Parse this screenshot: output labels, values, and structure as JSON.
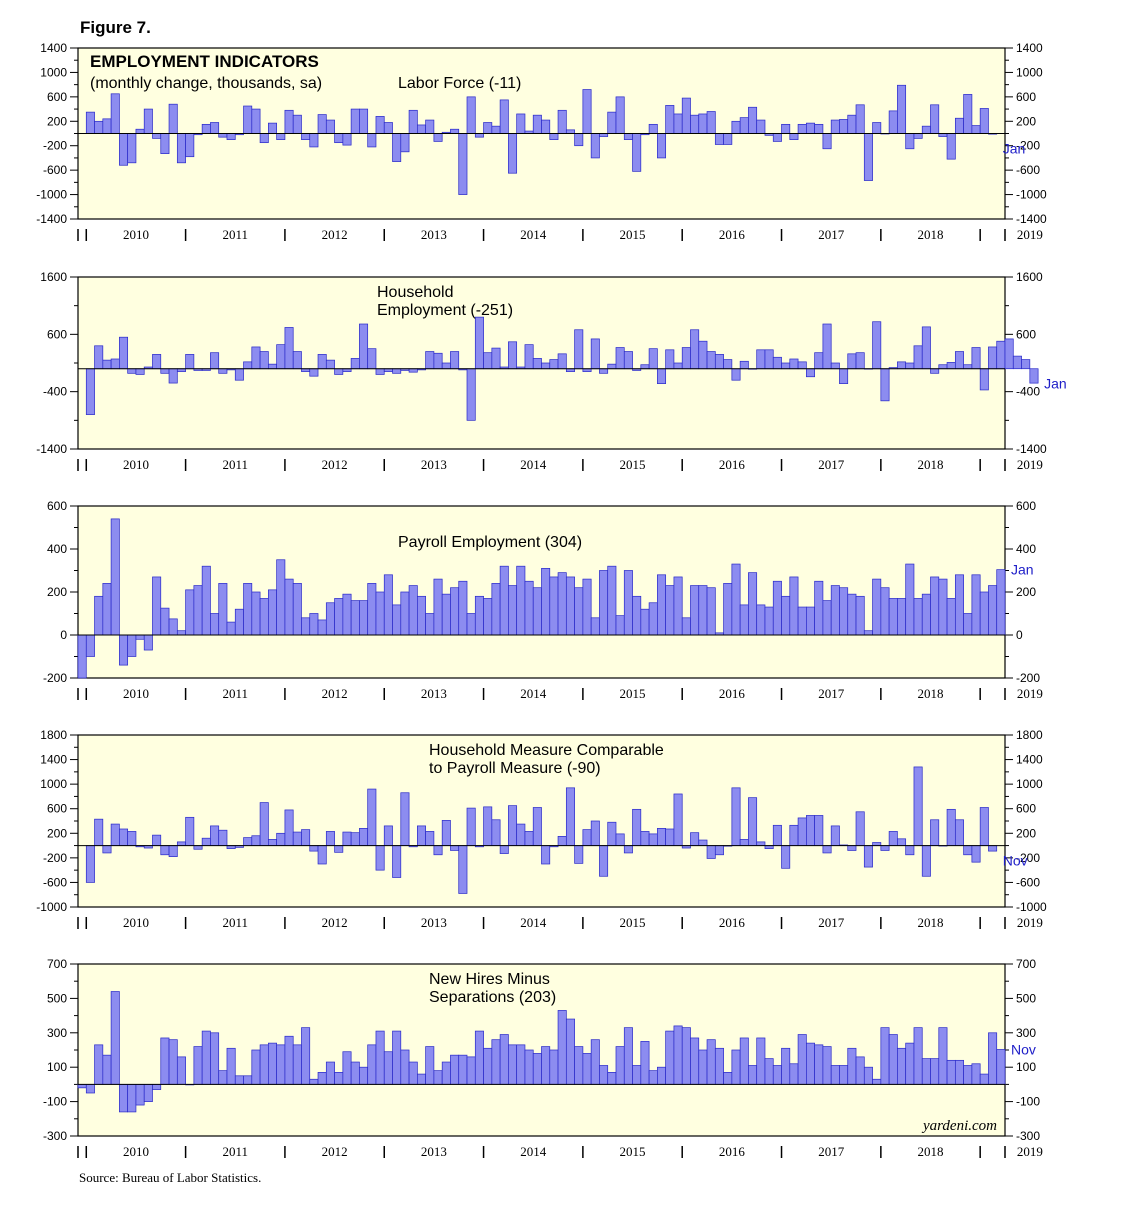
{
  "figure_title": "Figure 7.",
  "source": "Source: Bureau of Labor Statistics.",
  "credit": "yardeni.com",
  "colors": {
    "bar_fill": "#8c8cf0",
    "bar_stroke": "#2828c8",
    "panel_bg": "#ffffe0",
    "end_label": "#1e1ec8"
  },
  "chart_data": [
    {
      "type": "bar",
      "title": "EMPLOYMENT INDICATORS",
      "subtitle": "(monthly change, thousands, sa)",
      "series_label": "Labor Force (-11)",
      "end_label": "Jan",
      "ylim": [
        -1400,
        1400
      ],
      "yticks": [
        "1400",
        "1000",
        "600",
        "200",
        "-200",
        "-600",
        "-1000",
        "-1400"
      ],
      "years": [
        "2010",
        "2011",
        "2012",
        "2013",
        "2014",
        "2015",
        "2016",
        "2017",
        "2018",
        "2019"
      ],
      "x_start": "2010-01",
      "values": [
        350,
        200,
        240,
        650,
        -520,
        -480,
        70,
        400,
        -80,
        -330,
        480,
        -480,
        -380,
        -20,
        150,
        180,
        -60,
        -100,
        -20,
        450,
        400,
        -150,
        170,
        -100,
        380,
        300,
        -100,
        -220,
        310,
        220,
        -150,
        -190,
        400,
        400,
        -220,
        280,
        180,
        -460,
        -300,
        380,
        140,
        220,
        -130,
        20,
        70,
        -1000,
        600,
        -60,
        180,
        120,
        550,
        -650,
        320,
        40,
        300,
        220,
        -100,
        380,
        60,
        -200,
        720,
        -400,
        -50,
        350,
        600,
        -100,
        -620,
        -20,
        150,
        -400,
        460,
        320,
        580,
        300,
        320,
        360,
        -180,
        -180,
        200,
        260,
        430,
        220,
        -30,
        -130,
        150,
        -100,
        150,
        170,
        150,
        -250,
        220,
        230,
        300,
        470,
        -770,
        180,
        0,
        370,
        790,
        -250,
        -80,
        120,
        470,
        -50,
        -420,
        250,
        640,
        130,
        410,
        -11
      ]
    },
    {
      "type": "bar",
      "series_label_lines": [
        "Household",
        "Employment (-251)"
      ],
      "end_label": "Jan",
      "ylim": [
        -1400,
        1600
      ],
      "yticks": [
        "1600",
        "600",
        "-400",
        "-1400"
      ],
      "years": [
        "2010",
        "2011",
        "2012",
        "2013",
        "2014",
        "2015",
        "2016",
        "2017",
        "2018",
        "2019"
      ],
      "x_start": "2010-01",
      "values": [
        -800,
        400,
        150,
        170,
        550,
        -80,
        -100,
        30,
        250,
        -80,
        -250,
        -50,
        250,
        -30,
        -30,
        280,
        -80,
        -20,
        -200,
        120,
        380,
        300,
        80,
        420,
        720,
        300,
        -50,
        -130,
        250,
        150,
        -100,
        -50,
        180,
        780,
        350,
        -100,
        -50,
        -80,
        -30,
        -60,
        -20,
        300,
        270,
        100,
        300,
        -20,
        -900,
        900,
        280,
        360,
        30,
        470,
        30,
        420,
        180,
        100,
        160,
        260,
        -50,
        680,
        -50,
        520,
        -80,
        80,
        370,
        300,
        -30,
        70,
        350,
        -260,
        330,
        100,
        370,
        680,
        480,
        300,
        250,
        160,
        -200,
        130,
        0,
        330,
        330,
        200,
        100,
        170,
        120,
        -140,
        280,
        780,
        100,
        -260,
        260,
        280,
        1,
        820,
        -560,
        20,
        120,
        100,
        400,
        730,
        -80,
        70,
        110,
        300,
        70,
        370,
        -370,
        380,
        480,
        520,
        220,
        160,
        -251
      ]
    },
    {
      "type": "bar",
      "series_label": "Payroll Employment (304)",
      "end_label": "Jan",
      "ylim": [
        -200,
        600
      ],
      "yticks": [
        "600",
        "400",
        "200",
        "0",
        "-200"
      ],
      "years": [
        "2010",
        "2011",
        "2012",
        "2013",
        "2014",
        "2015",
        "2016",
        "2017",
        "2018",
        "2019"
      ],
      "x_start": "2009-12",
      "values": [
        -200,
        -100,
        180,
        240,
        540,
        -140,
        -100,
        -20,
        -70,
        270,
        125,
        75,
        20,
        210,
        230,
        320,
        100,
        240,
        60,
        120,
        240,
        200,
        170,
        210,
        350,
        260,
        240,
        80,
        100,
        70,
        150,
        170,
        190,
        160,
        160,
        240,
        200,
        280,
        140,
        200,
        230,
        180,
        100,
        260,
        190,
        220,
        250,
        100,
        180,
        170,
        240,
        320,
        230,
        320,
        250,
        220,
        310,
        270,
        290,
        270,
        220,
        260,
        80,
        300,
        320,
        90,
        300,
        180,
        120,
        150,
        280,
        230,
        270,
        80,
        230,
        230,
        220,
        10,
        240,
        330,
        140,
        290,
        140,
        130,
        250,
        180,
        270,
        130,
        130,
        250,
        160,
        230,
        220,
        190,
        180,
        20,
        260,
        220,
        170,
        170,
        330,
        170,
        190,
        270,
        260,
        170,
        280,
        100,
        280,
        200,
        230,
        304
      ]
    },
    {
      "type": "bar",
      "series_label_lines": [
        "Household Measure Comparable",
        "to Payroll Measure (-90)"
      ],
      "end_label": "Nov",
      "ylim": [
        -1000,
        1800
      ],
      "yticks": [
        "1800",
        "1400",
        "1000",
        "600",
        "200",
        "-200",
        "-600",
        "-1000"
      ],
      "years": [
        "2010",
        "2011",
        "2012",
        "2013",
        "2014",
        "2015",
        "2016",
        "2017",
        "2018",
        "2019"
      ],
      "x_start": "2010-01",
      "values": [
        -600,
        430,
        -120,
        350,
        270,
        230,
        -20,
        -40,
        170,
        -150,
        -180,
        60,
        460,
        -60,
        120,
        320,
        250,
        -50,
        -30,
        130,
        160,
        700,
        100,
        200,
        580,
        220,
        260,
        -90,
        -300,
        230,
        -110,
        220,
        210,
        280,
        920,
        -400,
        320,
        -520,
        860,
        -20,
        320,
        230,
        -150,
        410,
        -80,
        -780,
        610,
        -20,
        630,
        420,
        -130,
        650,
        350,
        230,
        620,
        -300,
        -20,
        150,
        940,
        -290,
        260,
        400,
        -500,
        380,
        190,
        -120,
        590,
        230,
        190,
        280,
        270,
        840,
        -40,
        210,
        90,
        -210,
        -150,
        -10,
        940,
        100,
        780,
        60,
        -50,
        330,
        -370,
        330,
        450,
        490,
        490,
        -120,
        320,
        10,
        -80,
        550,
        -350,
        50,
        -80,
        230,
        110,
        -150,
        1280,
        -500,
        420,
        0,
        590,
        420,
        -150,
        -270,
        620,
        -90
      ]
    },
    {
      "type": "bar",
      "series_label_lines": [
        "New Hires Minus",
        "Separations (203)"
      ],
      "end_label": "Nov",
      "credit": "yardeni.com",
      "ylim": [
        -300,
        700
      ],
      "yticks": [
        "700",
        "500",
        "300",
        "100",
        "-100",
        "-300"
      ],
      "years": [
        "2010",
        "2011",
        "2012",
        "2013",
        "2014",
        "2015",
        "2016",
        "2017",
        "2018",
        "2019"
      ],
      "x_start": "2009-12",
      "values": [
        -20,
        -50,
        230,
        170,
        540,
        -160,
        -160,
        -120,
        -100,
        -30,
        270,
        260,
        160,
        0,
        220,
        310,
        300,
        80,
        210,
        50,
        50,
        200,
        230,
        240,
        230,
        280,
        230,
        330,
        30,
        70,
        130,
        70,
        190,
        130,
        100,
        230,
        310,
        190,
        310,
        200,
        130,
        60,
        220,
        80,
        130,
        170,
        170,
        160,
        310,
        210,
        260,
        290,
        230,
        230,
        200,
        180,
        220,
        200,
        430,
        380,
        220,
        180,
        260,
        110,
        70,
        220,
        330,
        110,
        250,
        80,
        100,
        310,
        340,
        330,
        270,
        200,
        260,
        210,
        70,
        200,
        270,
        110,
        270,
        150,
        110,
        210,
        120,
        290,
        240,
        230,
        220,
        110,
        110,
        210,
        160,
        100,
        30,
        330,
        290,
        210,
        240,
        330,
        150,
        150,
        330,
        140,
        140,
        110,
        120,
        60,
        300,
        203
      ]
    }
  ]
}
